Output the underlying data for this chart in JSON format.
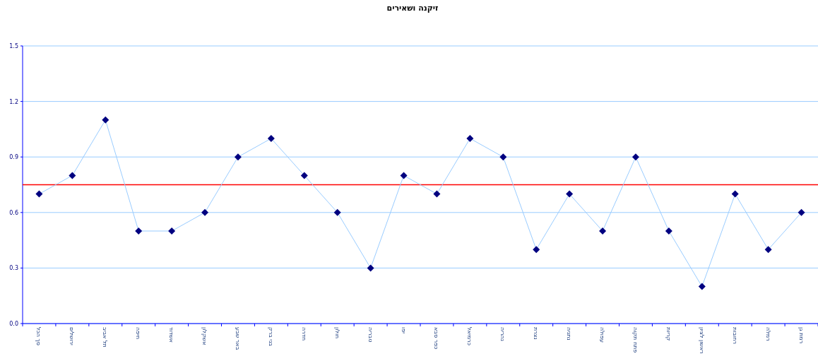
{
  "chart_data": {
    "type": "line",
    "title": "זיקנה ושאירים",
    "categories": [
      "סך הכל",
      "ירושלים",
      "תל אביב",
      "חיפה",
      "אשדוד",
      "אשקלון",
      "באר שבע",
      "בני ברק",
      "חדרה",
      "חולון",
      "טבריה",
      "יפו",
      "כפר סבא",
      "כרמיאל",
      "נהריה",
      "נצרת",
      "נתניה",
      "עפולה",
      "פתח תקוה",
      "קריות",
      "ראשון לציון",
      "רחובות",
      "רמלה",
      "רמת גן"
    ],
    "series": [
      {
        "color": "#000080",
        "values": [
          0.7,
          0.8,
          1.1,
          0.5,
          0.5,
          0.6,
          0.9,
          1.0,
          0.8,
          0.6,
          0.3,
          0.8,
          0.7,
          1.0,
          0.9,
          0.4,
          0.7,
          0.5,
          0.9,
          0.5,
          0.2,
          0.7,
          0.4,
          0.6
        ]
      }
    ],
    "marker": "diamond",
    "grid": "y",
    "ylim": [
      0,
      1.5
    ],
    "yticks": [
      {
        "value": 0,
        "label": "0.0"
      },
      0.3,
      0.6,
      0.9,
      1.2,
      1.5
    ],
    "ref_lines": [
      {
        "axis": "y",
        "value": 0.75,
        "color": "#ff0000"
      }
    ]
  }
}
